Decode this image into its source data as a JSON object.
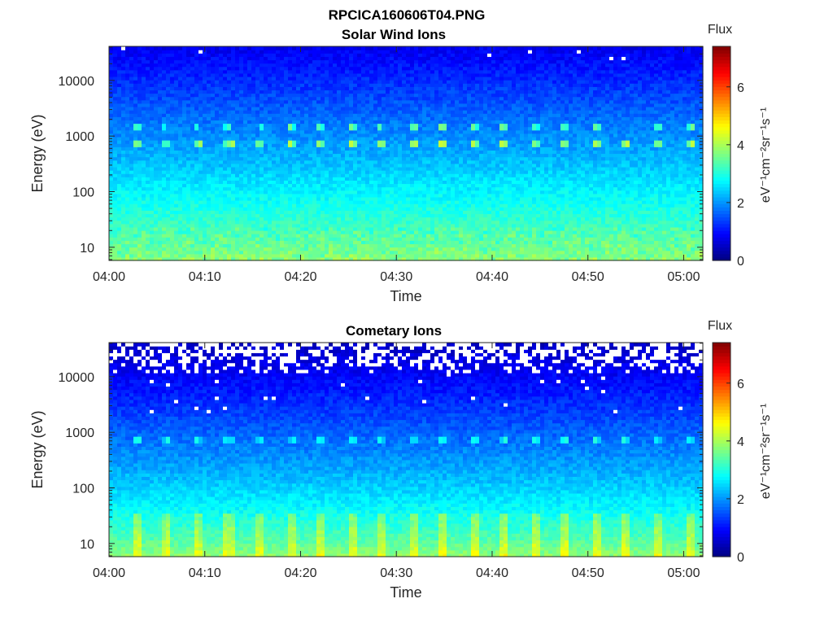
{
  "figure": {
    "title": "RPCICA160606T04.PNG"
  },
  "colors": {
    "colormap": "jet",
    "missing": "#ffffff",
    "axis": "#262626"
  },
  "chart_data": [
    {
      "type": "heatmap",
      "title": "Solar Wind Ions",
      "xlabel": "Time",
      "ylabel": "Energy (eV)",
      "x_ticks": [
        "04:00",
        "04:10",
        "04:20",
        "04:30",
        "04:40",
        "04:50",
        "05:00"
      ],
      "x_range": [
        "04:00",
        "05:02"
      ],
      "y_scale": "log",
      "y_ticks": [
        "10",
        "100",
        "1000",
        "10000"
      ],
      "y_range": [
        5.8,
        41000
      ],
      "colorbar": {
        "title": "Flux",
        "label": "eV⁻¹cm⁻²sr⁻¹s⁻¹",
        "range": [
          0,
          7.4
        ],
        "ticks": [
          "0",
          "2",
          "4",
          "6"
        ]
      },
      "features": [
        {
          "description": "background flux",
          "energy_range_eV": [
            6,
            41000
          ],
          "flux_range": [
            0.8,
            3.8
          ],
          "trend": "decreasing with energy"
        },
        {
          "description": "periodic peak",
          "energy_eV": 720,
          "flux": 3.7,
          "period_min": 3.2
        },
        {
          "description": "secondary peak",
          "energy_eV": 1500,
          "flux": 3.2,
          "period_min": 3.2
        }
      ]
    },
    {
      "type": "heatmap",
      "title": "Cometary Ions",
      "xlabel": "Time",
      "ylabel": "Energy (eV)",
      "x_ticks": [
        "04:00",
        "04:10",
        "04:20",
        "04:30",
        "04:40",
        "04:50",
        "05:00"
      ],
      "x_range": [
        "04:00",
        "05:02"
      ],
      "y_scale": "log",
      "y_ticks": [
        "10",
        "100",
        "1000",
        "10000"
      ],
      "y_range": [
        5.8,
        41000
      ],
      "colorbar": {
        "title": "Flux",
        "label": "eV⁻¹cm⁻²sr⁻¹s⁻¹",
        "range": [
          0,
          7.4
        ],
        "ticks": [
          "0",
          "2",
          "4",
          "6"
        ]
      },
      "features": [
        {
          "description": "background flux",
          "energy_range_eV": [
            6,
            41000
          ],
          "flux_range": [
            0.5,
            3.9
          ],
          "trend": "decreasing with energy"
        },
        {
          "description": "periodic peak",
          "energy_eV": 720,
          "flux": 2.8,
          "period_min": 3.2
        },
        {
          "description": "no data above",
          "energy_eV": 12000
        }
      ]
    }
  ]
}
